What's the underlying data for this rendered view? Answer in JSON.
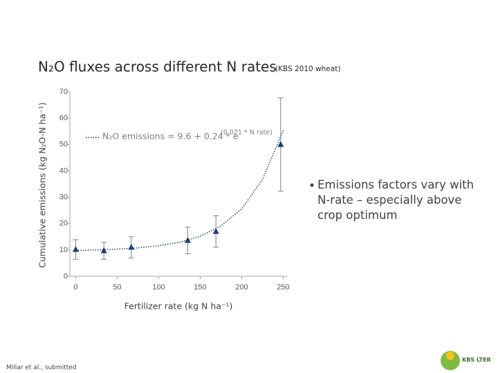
{
  "chart_data": {
    "type": "scatter",
    "title": "N₂O fluxes across different N rates",
    "subtitle": "(KBS 2010 wheat)",
    "x_label": "Fertilizer rate (kg N ha⁻¹)",
    "y_label": "Cumulative emissions (kg N₂O-N ha⁻¹)",
    "equation": "N₂O emissions = 9.6 + 0.24 * e",
    "equation_exponent": "(0.021 * N rate)",
    "color": "#1f3a7a",
    "x": [
      0,
      34,
      67,
      135,
      169,
      247
    ],
    "values": [
      10.2,
      9.7,
      11,
      13.6,
      17,
      50
    ],
    "errors": [
      3.7,
      3.2,
      4,
      5,
      6,
      17.7
    ],
    "fit": {
      "x": [
        0,
        25,
        50,
        75,
        100,
        125,
        150,
        175,
        200,
        225,
        250
      ],
      "values": [
        9.8,
        10.0,
        10.3,
        10.8,
        11.6,
        12.9,
        15.2,
        19.1,
        25.6,
        36.7,
        55.3
      ]
    },
    "xlim": [
      -7,
      255
    ],
    "ylim": [
      0,
      70
    ],
    "xticks": [
      0,
      50,
      100,
      150,
      200,
      250
    ],
    "yticks": [
      0,
      10,
      20,
      30,
      40,
      50,
      60,
      70
    ]
  },
  "bullet": "Emissions factors vary with N-rate – especially above crop optimum",
  "footer": "Millar et al., submitted",
  "logo": "KBS LTER"
}
